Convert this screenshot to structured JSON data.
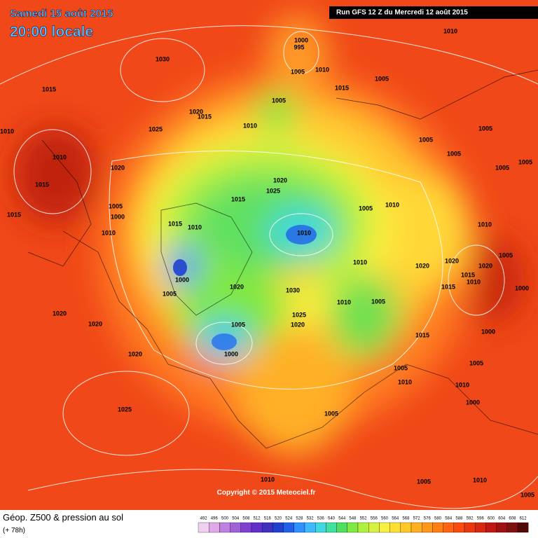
{
  "header": {
    "date": "Samedi 15 août 2015",
    "time": "20:00 locale",
    "run": "Run GFS 12 Z du Mercredi 12 août 2015"
  },
  "copyright": "Copyright © 2015 Meteociel.fr",
  "footer": {
    "title": "Géop. Z500 & pression au sol",
    "lead": "(+ 78h)"
  },
  "isobar_labels": [
    1030,
    1015,
    1010,
    1025,
    1020,
    1015,
    1010,
    1005,
    1000,
    995,
    1005,
    1010,
    1010,
    1015,
    1005,
    1005,
    1005,
    1005,
    1005,
    1005,
    1010,
    1015,
    1020,
    1005,
    1000,
    1010,
    1015,
    1020,
    1025,
    1015,
    1015,
    1010,
    1000,
    1005,
    1010,
    1005,
    1010,
    1010,
    1010,
    1020,
    1020,
    1020,
    1005,
    1015,
    1010,
    1000,
    1015,
    1020,
    1030,
    1010,
    1005,
    1025,
    1020,
    1005,
    1000,
    1020,
    1020,
    1020,
    1015,
    1000,
    1005,
    1005,
    1010,
    1010,
    1000,
    1025,
    1005,
    1010,
    1005,
    1010,
    1005
  ],
  "scale": {
    "labels": [
      492,
      496,
      500,
      504,
      508,
      512,
      516,
      520,
      524,
      528,
      532,
      536,
      540,
      544,
      548,
      552,
      556,
      560,
      564,
      568,
      572,
      576,
      580,
      584,
      588,
      592,
      596,
      600,
      604,
      608,
      612
    ],
    "colors": [
      "#f0d0f0",
      "#e0a8e8",
      "#c080e0",
      "#a060d8",
      "#8040d0",
      "#6030c8",
      "#4030c0",
      "#2040d0",
      "#2060e8",
      "#3090ff",
      "#40b8ff",
      "#40d8e0",
      "#40e0a0",
      "#50e060",
      "#80e840",
      "#b0f040",
      "#d8f040",
      "#f8f040",
      "#ffe030",
      "#ffc828",
      "#ffb020",
      "#ff9818",
      "#ff8010",
      "#ff6410",
      "#f84c10",
      "#e83810",
      "#d82810",
      "#c01810",
      "#a01010",
      "#801010",
      "#500808"
    ]
  }
}
